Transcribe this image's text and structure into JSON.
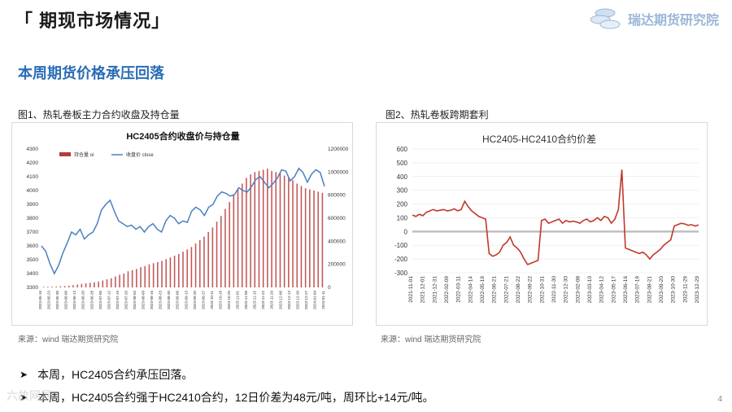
{
  "header": {
    "title": "「 期现市场情况」"
  },
  "brand": {
    "name": "瑞达期货研究院"
  },
  "subtitle": "本周期货价格承压回落",
  "figures": [
    {
      "caption": "图1、热轧卷板主力合约收盘及持仓量",
      "source": "来源：wind   瑞达期货研究院"
    },
    {
      "caption": "图2、热轧卷板跨期套利",
      "source": "来源：wind   瑞达期货研究院"
    }
  ],
  "bullets": [
    "本周，HC2405合约承压回落。",
    "本周，HC2405合约强于HC2410合约，12日价差为48元/吨，周环比+14元/吨。"
  ],
  "watermark": "六故网景",
  "page_number": "4",
  "chart_data": [
    {
      "type": "bar+line",
      "title": "HC2405合约收盘价与持仓量",
      "legend": [
        "持仓量 oi",
        "收盘价 close"
      ],
      "legend_position": "top-left",
      "colors": {
        "oi": "#b83a3a",
        "close": "#4a7fc1"
      },
      "y_left": {
        "range": [
          3300,
          4300
        ],
        "ticks": [
          3300,
          3400,
          3500,
          3600,
          3700,
          3800,
          3900,
          4000,
          4100,
          4200,
          4300
        ]
      },
      "y_right": {
        "range": [
          0,
          1200000
        ],
        "ticks": [
          0,
          200000,
          400000,
          600000,
          800000,
          1000000,
          1200000
        ]
      },
      "x_ticks": [
        "2023-05-16",
        "2023-05-23",
        "2023-05-30",
        "2023-06-06",
        "2023-06-13",
        "2023-06-20",
        "2023-06-28",
        "2023-07-05",
        "2023-07-12",
        "2023-07-19",
        "2023-07-26",
        "2023-08-02",
        "2023-08-09",
        "2023-08-16",
        "2023-08-23",
        "2023-08-30",
        "2023-09-06",
        "2023-09-13",
        "2023-09-20",
        "2023-09-27",
        "2023-10-11",
        "2023-10-18",
        "2023-10-25",
        "2023-11-01",
        "2023-11-08",
        "2023-11-15",
        "2023-11-22",
        "2023-11-29",
        "2023-12-06",
        "2023-12-13",
        "2023-12-20",
        "2023-12-27",
        "2024-01-04",
        "2024-01-11"
      ],
      "close": [
        3600,
        3560,
        3470,
        3400,
        3460,
        3550,
        3620,
        3700,
        3680,
        3720,
        3650,
        3680,
        3700,
        3760,
        3860,
        3900,
        3930,
        3850,
        3780,
        3760,
        3740,
        3750,
        3720,
        3740,
        3700,
        3740,
        3760,
        3720,
        3700,
        3780,
        3820,
        3800,
        3760,
        3780,
        3770,
        3850,
        3880,
        3860,
        3820,
        3880,
        3900,
        3960,
        3990,
        3980,
        3960,
        3970,
        4020,
        4000,
        3990,
        4030,
        4080,
        4100,
        4060,
        4020,
        4050,
        4090,
        4150,
        4140,
        4070,
        4100,
        4160,
        4130,
        4060,
        4120,
        4150,
        4130,
        4030
      ],
      "oi_envelope": [
        5000,
        6000,
        7000,
        8000,
        10000,
        12000,
        15000,
        20000,
        25000,
        30000,
        35000,
        40000,
        45000,
        50000,
        60000,
        70000,
        80000,
        95000,
        110000,
        120000,
        140000,
        150000,
        160000,
        175000,
        185000,
        200000,
        210000,
        220000,
        230000,
        245000,
        260000,
        275000,
        290000,
        310000,
        330000,
        350000,
        380000,
        410000,
        440000,
        480000,
        520000,
        570000,
        620000,
        680000,
        740000,
        800000,
        850000,
        900000,
        950000,
        980000,
        1000000,
        1010000,
        1020000,
        1030000,
        1010000,
        1000000,
        990000,
        970000,
        950000,
        930000,
        900000,
        880000,
        860000,
        850000,
        840000,
        830000,
        820000
      ]
    },
    {
      "type": "line",
      "title": "HC2405-HC2410合约价差",
      "color": "#c0392b",
      "y": {
        "range": [
          -300,
          600
        ],
        "ticks": [
          -300,
          -200,
          -100,
          0,
          100,
          200,
          300,
          400,
          500,
          600
        ]
      },
      "x_ticks": [
        "2021-11-01",
        "2021-12-01",
        "2021-12-31",
        "2022-02-09",
        "2022-03-11",
        "2022-04-14",
        "2022-05-19",
        "2022-06-21",
        "2022-07-21",
        "2022-08-22",
        "2022-09-22",
        "2022-10-31",
        "2022-11-30",
        "2022-12-30",
        "2023-02-08",
        "2023-03-10",
        "2023-04-12",
        "2023-05-17",
        "2023-06-16",
        "2023-07-19",
        "2023-08-21",
        "2023-09-20",
        "2023-10-30",
        "2023-11-29",
        "2023-12-29"
      ],
      "values": [
        120,
        110,
        125,
        115,
        140,
        150,
        160,
        150,
        155,
        160,
        150,
        155,
        165,
        150,
        160,
        220,
        180,
        150,
        130,
        110,
        100,
        90,
        -160,
        -180,
        -170,
        -150,
        -100,
        -80,
        -40,
        -100,
        -120,
        -150,
        -200,
        -240,
        -230,
        -220,
        -210,
        80,
        90,
        60,
        70,
        80,
        90,
        60,
        80,
        70,
        75,
        70,
        60,
        80,
        90,
        70,
        80,
        100,
        80,
        110,
        100,
        60,
        90,
        160,
        450,
        -120,
        -130,
        -140,
        -150,
        -160,
        -150,
        -170,
        -200,
        -170,
        -150,
        -130,
        -100,
        -80,
        -60,
        40,
        50,
        60,
        55,
        45,
        50,
        40,
        48
      ]
    }
  ]
}
